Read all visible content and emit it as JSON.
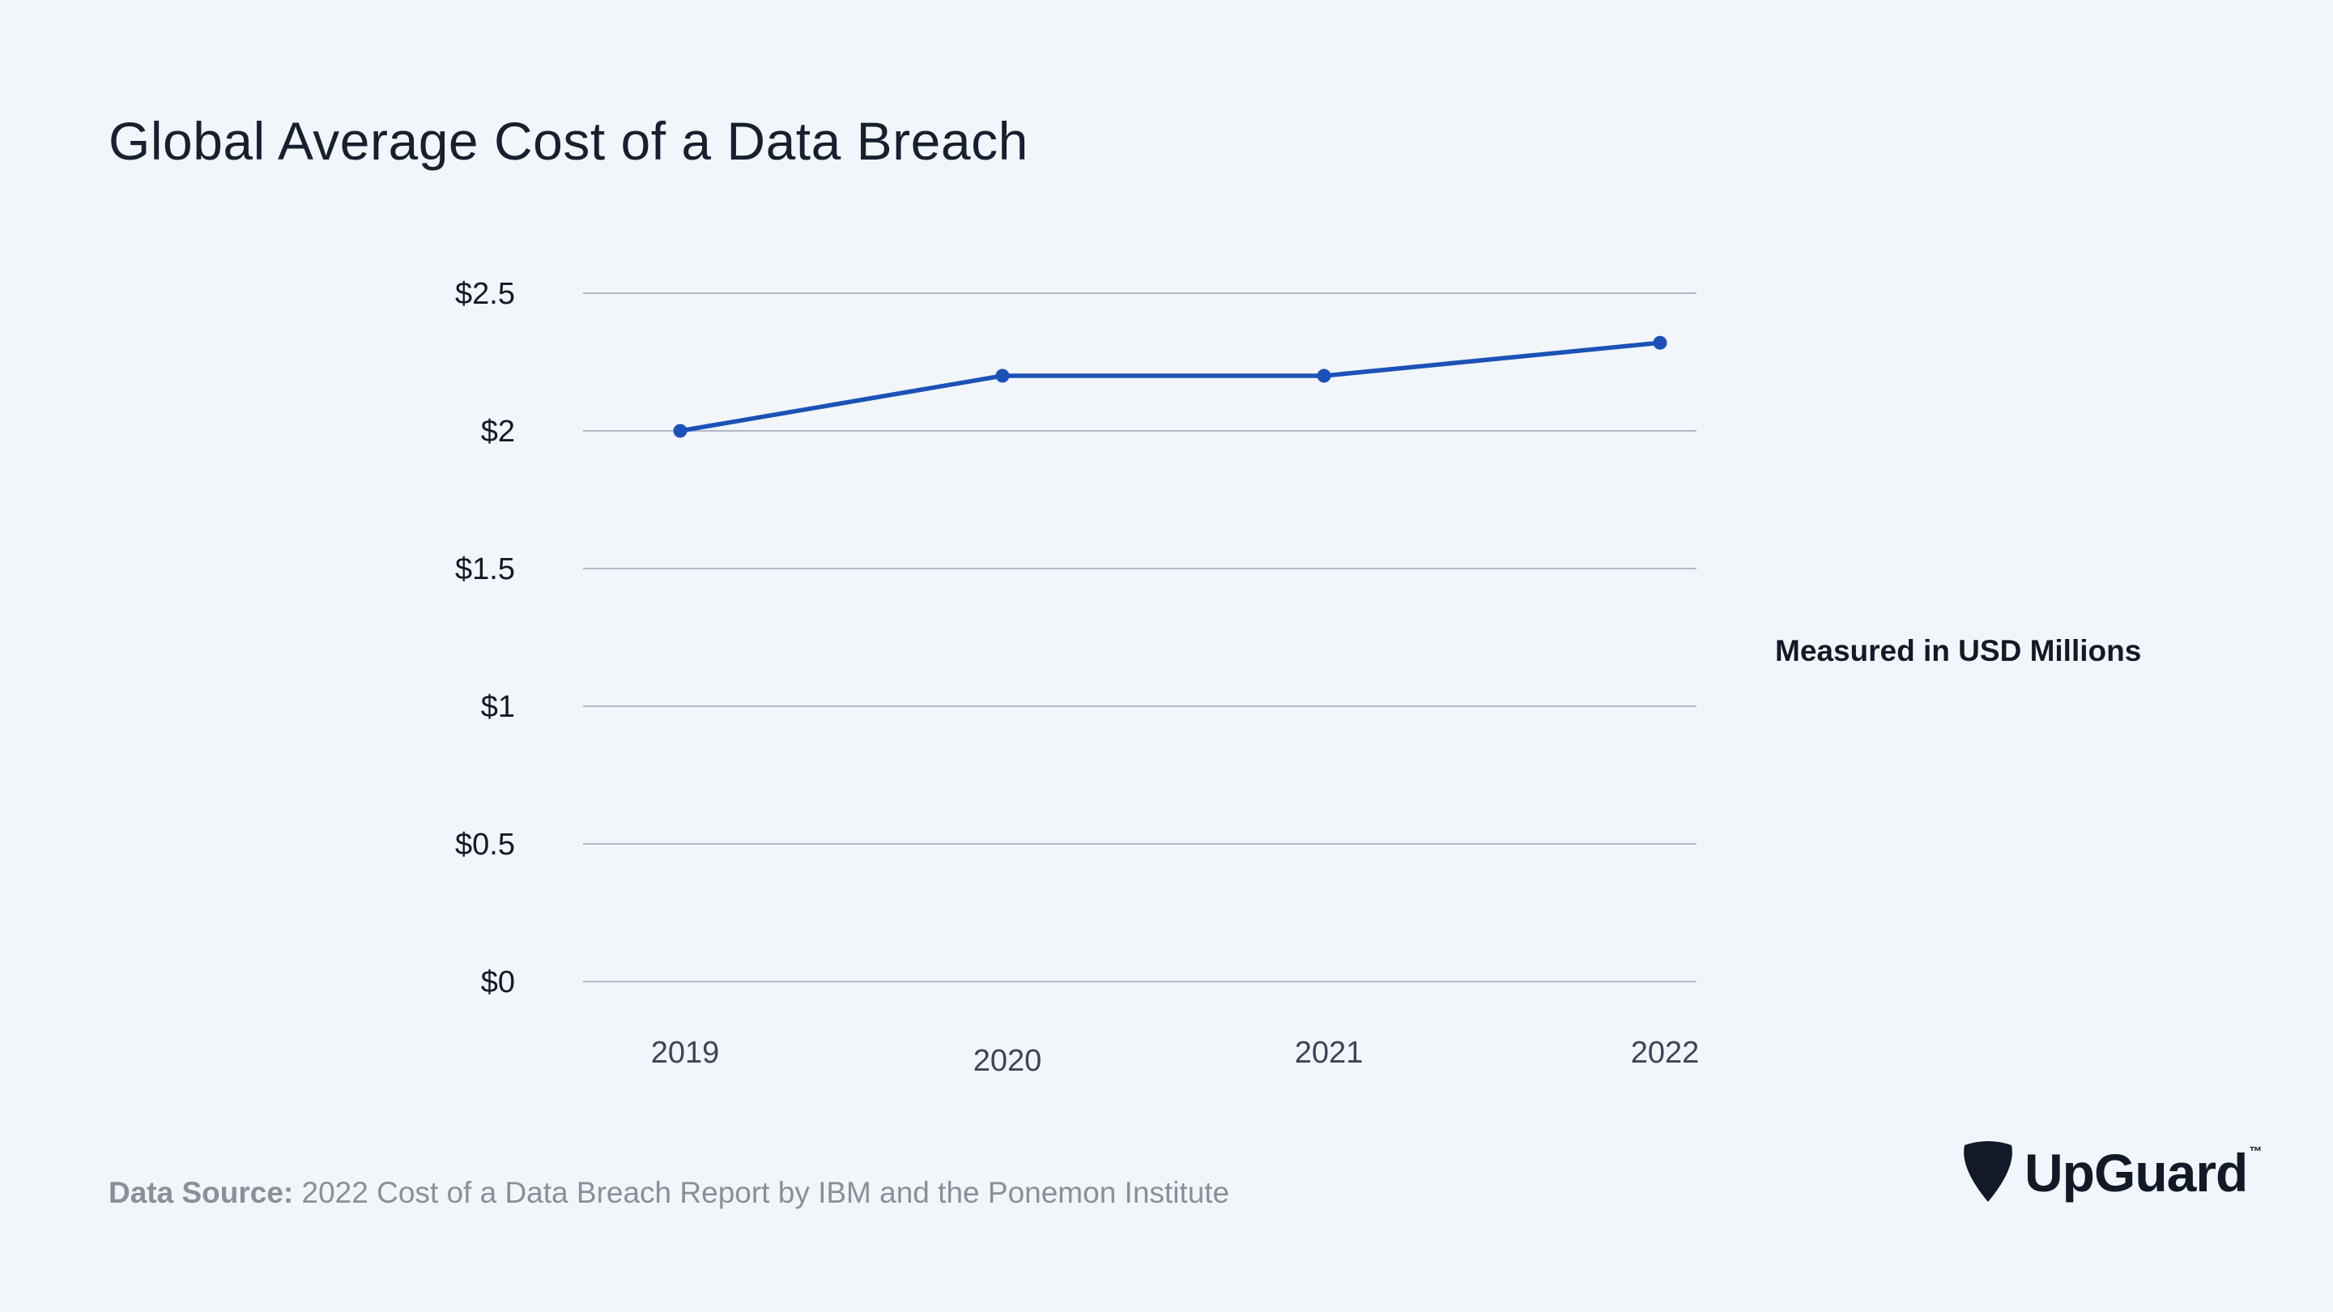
{
  "title": "Global Average Cost of a Data Breach",
  "unit_note": "Measured in USD Millions",
  "source": {
    "label": "Data Source:",
    "text": "2022 Cost of a Data Breach Report by IBM and the Ponemon Institute"
  },
  "logo": {
    "text": "UpGuard",
    "tm": "™",
    "icon": "shield-pick-icon"
  },
  "colors": {
    "line": "#1c52b7",
    "grid": "#b3b8c8",
    "background": "#f2f6fb"
  },
  "chart_data": {
    "type": "line",
    "categories": [
      "2019",
      "2020",
      "2021",
      "2022"
    ],
    "series": [
      {
        "values": [
          2.0,
          2.2,
          2.2,
          2.32
        ]
      }
    ],
    "ylim": [
      0,
      2.5
    ],
    "yticks": [
      {
        "value": 0,
        "label": "$0"
      },
      {
        "value": 0.5,
        "label": "$0.5"
      },
      {
        "value": 1,
        "label": "$1"
      },
      {
        "value": 1.5,
        "label": "$1.5"
      },
      {
        "value": 2,
        "label": "$2"
      },
      {
        "value": 2.5,
        "label": "$2.5"
      }
    ],
    "grid": true,
    "legend": "none"
  }
}
